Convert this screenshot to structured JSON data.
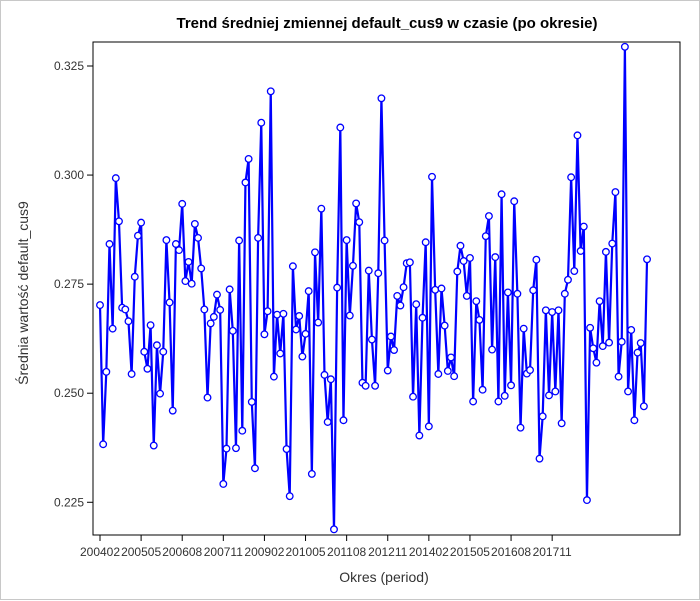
{
  "chart_data": {
    "type": "line",
    "title": "Trend średniej zmiennej default_cus9 w czasie (po okresie)",
    "xlabel": "Okres (period)",
    "ylabel": "Średnia wartość default_cus9",
    "x_tick_labels": [
      "200402",
      "200505",
      "200608",
      "200711",
      "200902",
      "201005",
      "201108",
      "201211",
      "201402",
      "201505",
      "201608",
      "201711"
    ],
    "y_tick_labels": [
      "0.225",
      "0.250",
      "0.275",
      "0.300",
      "0.325"
    ],
    "y_ticks": [
      0.225,
      0.25,
      0.275,
      0.3,
      0.325
    ],
    "ylim": [
      0.2175,
      0.3305
    ],
    "point_index_range": [
      0,
      179
    ],
    "colors": {
      "line": "#0000ff",
      "marker_stroke": "#0000ff",
      "marker_fill": "#ffffff"
    },
    "series": [
      {
        "values": [
          0.2702,
          0.2383,
          0.2549,
          0.2842,
          0.2648,
          0.2993,
          0.2894,
          0.2696,
          0.2692,
          0.2665,
          0.2544,
          0.2767,
          0.2861,
          0.2891,
          0.2595,
          0.2556,
          0.2656,
          0.238,
          0.261,
          0.2499,
          0.2595,
          0.2851,
          0.2708,
          0.246,
          0.2842,
          0.2828,
          0.2934,
          0.2757,
          0.2801,
          0.2751,
          0.2888,
          0.2856,
          0.2786,
          0.2692,
          0.249,
          0.266,
          0.2675,
          0.2726,
          0.2691,
          0.2292,
          0.2373,
          0.2738,
          0.2643,
          0.2374,
          0.285,
          0.2414,
          0.2983,
          0.3037,
          0.248,
          0.2328,
          0.2856,
          0.312,
          0.2635,
          0.2688,
          0.3192,
          0.2538,
          0.268,
          0.2591,
          0.2682,
          0.2372,
          0.2264,
          0.2791,
          0.2646,
          0.2677,
          0.2584,
          0.2636,
          0.2734,
          0.2315,
          0.2823,
          0.2662,
          0.2923,
          0.2542,
          0.2434,
          0.2532,
          0.2188,
          0.2742,
          0.3109,
          0.2438,
          0.2851,
          0.2678,
          0.2792,
          0.2935,
          0.2892,
          0.2524,
          0.2517,
          0.2781,
          0.2623,
          0.2517,
          0.2775,
          0.3176,
          0.285,
          0.2552,
          0.263,
          0.2599,
          0.2723,
          0.2701,
          0.2743,
          0.2798,
          0.28,
          0.2492,
          0.2704,
          0.2403,
          0.2673,
          0.2846,
          0.2424,
          0.2996,
          0.2737,
          0.2544,
          0.274,
          0.2655,
          0.2551,
          0.2582,
          0.2539,
          0.2779,
          0.2838,
          0.2803,
          0.2723,
          0.281,
          0.2481,
          0.2711,
          0.2668,
          0.2508,
          0.286,
          0.2906,
          0.26,
          0.2812,
          0.2481,
          0.2956,
          0.2494,
          0.2731,
          0.2518,
          0.294,
          0.2728,
          0.2421,
          0.2648,
          0.2545,
          0.2553,
          0.2736,
          0.2806,
          0.235,
          0.2447,
          0.269,
          0.2495,
          0.2686,
          0.2504,
          0.269,
          0.2431,
          0.2728,
          0.276,
          0.2995,
          0.278,
          0.3091,
          0.2826,
          0.2882,
          0.2255,
          0.265,
          0.2603,
          0.257,
          0.2711,
          0.2608,
          0.2824,
          0.2616,
          0.2843,
          0.2961,
          0.2538,
          0.2618,
          0.3294,
          0.2504,
          0.2645,
          0.2438,
          0.2593,
          0.2615,
          0.247,
          0.2807
        ]
      }
    ]
  }
}
